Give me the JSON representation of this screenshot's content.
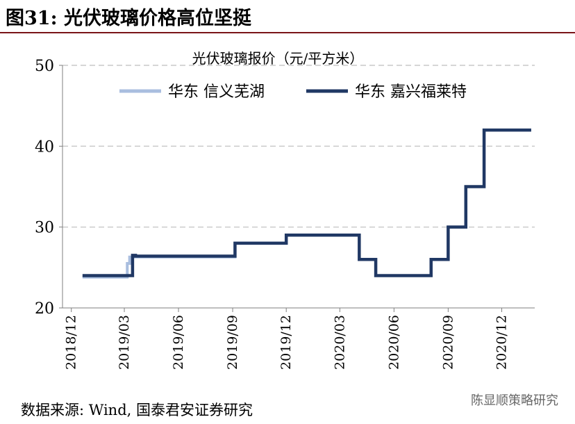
{
  "figure": {
    "title": "图31: 光伏玻璃价格高位坚挺",
    "source": "数据来源: Wind, 国泰君安证券研究",
    "watermark": "陈显顺策略研究"
  },
  "chart_data": {
    "type": "line",
    "title": "光伏玻璃报价（元/平方米）",
    "xlabel": "",
    "ylabel": "",
    "ylim": [
      20,
      50
    ],
    "yticks": [
      20,
      30,
      40,
      50
    ],
    "xticks": [
      "2018/12",
      "2019/03",
      "2019/06",
      "2019/09",
      "2019/12",
      "2020/03",
      "2020/06",
      "2020/09",
      "2020/12"
    ],
    "grid": true,
    "legend": "top",
    "series": [
      {
        "name": "华东 信义芜湖",
        "color": "#a9bedf",
        "x": [
          "2018-12-20",
          "2019-03-01",
          "2019-03-06",
          "2019-03-10",
          "2019-09-01",
          "2019-09-05",
          "2019-12-01",
          "2020-04-01",
          "2020-04-03",
          "2020-05-01",
          "2020-08-01",
          "2020-08-03",
          "2020-09-01",
          "2020-10-01",
          "2020-11-01",
          "2021-01-20"
        ],
        "values": [
          23.8,
          23.8,
          25.5,
          26.3,
          26.3,
          28.0,
          29.0,
          29.0,
          26.0,
          24.0,
          24.0,
          26.0,
          30.0,
          35.0,
          42.0,
          42.0
        ]
      },
      {
        "name": "华东 嘉兴福莱特",
        "color": "#203864",
        "x": [
          "2018-12-20",
          "2019-03-08",
          "2019-03-15",
          "2019-03-20",
          "2019-09-01",
          "2019-09-05",
          "2019-12-01",
          "2020-04-01",
          "2020-04-03",
          "2020-05-01",
          "2020-08-01",
          "2020-08-03",
          "2020-09-01",
          "2020-10-01",
          "2020-11-01",
          "2021-01-20"
        ],
        "values": [
          24.0,
          24.0,
          26.5,
          26.4,
          26.4,
          28.0,
          29.0,
          29.0,
          26.0,
          24.0,
          24.0,
          26.0,
          30.0,
          35.0,
          42.0,
          42.0
        ]
      }
    ]
  }
}
